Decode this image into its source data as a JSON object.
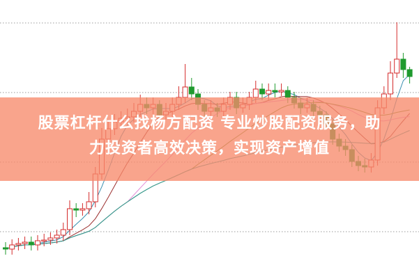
{
  "banner": {
    "title_line1": "股票杠杆什么找杨方配资 专业炒股配资服务，助",
    "title_line2": "力投资者高效决策，实现资产增值"
  },
  "colors": {
    "up": "#d42a2a",
    "down": "#1f9a2e",
    "banner": "#f78a6c",
    "ma": [
      "#3a8fb0",
      "#9b2f2f",
      "#e48fd8",
      "#6f8f2f",
      "#2f9a9a"
    ],
    "grid": "#9a9a9a"
  },
  "chart_data": {
    "type": "candlestick",
    "ylim": [
      0,
      100
    ],
    "grid": true,
    "moving_averages": [
      5,
      10,
      20,
      30,
      60
    ],
    "open": [
      11,
      10.5,
      12,
      12.5,
      13,
      12,
      13.5,
      13.75,
      14.5,
      15.5,
      17.5,
      25,
      24.5,
      25,
      27.5,
      37.5,
      50,
      53.75,
      56.25,
      57.5,
      58,
      60,
      62.5,
      61.25,
      62.5,
      58.75,
      60,
      62.5,
      65,
      68.75,
      66.25,
      62.5,
      60,
      61.25,
      60,
      62.5,
      65,
      61.25,
      62.5,
      65,
      68,
      66.25,
      67.5,
      67,
      67.5,
      65,
      63,
      61.25,
      62.5,
      60,
      58.75,
      55.5,
      50,
      47.5,
      46.25,
      42,
      40.5,
      40,
      42.5,
      61.25,
      66.25,
      73.75,
      78.75,
      75
    ],
    "close": [
      10.5,
      12,
      12.5,
      13,
      12,
      13.5,
      13.75,
      14.5,
      15.5,
      17.5,
      25,
      24.5,
      25,
      27.5,
      37.5,
      50,
      53.75,
      56.25,
      57.5,
      58,
      60,
      62.5,
      61.25,
      62.5,
      58.75,
      60,
      62.5,
      65,
      68.75,
      66.25,
      62.5,
      60,
      61.25,
      60,
      62.5,
      65,
      61.25,
      62.5,
      65,
      68,
      66.25,
      67.5,
      67,
      67.5,
      65,
      63,
      61.25,
      62.5,
      60,
      58.75,
      55.5,
      50,
      47.5,
      46.25,
      42,
      40.5,
      40,
      42.5,
      61.25,
      66.25,
      73.75,
      78.75,
      75,
      72.5
    ],
    "high": [
      13,
      14,
      14.5,
      15,
      15,
      15.5,
      16,
      16.5,
      17.5,
      20,
      28,
      27,
      27,
      31,
      40,
      54,
      57,
      59,
      60,
      61,
      63,
      66,
      65,
      65,
      64,
      63,
      65,
      69,
      77,
      72,
      68,
      64,
      64,
      63,
      65,
      67,
      67,
      65,
      67,
      71,
      70,
      70,
      70,
      70,
      69,
      67,
      65,
      65,
      64,
      62,
      60,
      57,
      52,
      50,
      48,
      44,
      43,
      45,
      64,
      69,
      78,
      92,
      81,
      76
    ],
    "low": [
      8.5,
      8.5,
      10,
      10.5,
      10,
      10,
      11.5,
      12,
      12.5,
      13.5,
      15.5,
      22,
      22.5,
      23,
      25.5,
      35.5,
      48,
      51.5,
      54,
      55.5,
      56,
      58,
      59,
      59,
      56.5,
      57,
      58,
      60.5,
      63,
      64,
      60.5,
      58,
      58,
      58,
      58,
      60.5,
      59,
      59.5,
      60.5,
      63,
      64,
      64,
      65,
      65.5,
      63,
      61,
      59,
      59.5,
      58,
      56.5,
      53.5,
      48,
      45.5,
      44,
      40,
      38.5,
      38,
      38,
      40.5,
      59,
      64,
      72,
      72,
      70
    ]
  }
}
